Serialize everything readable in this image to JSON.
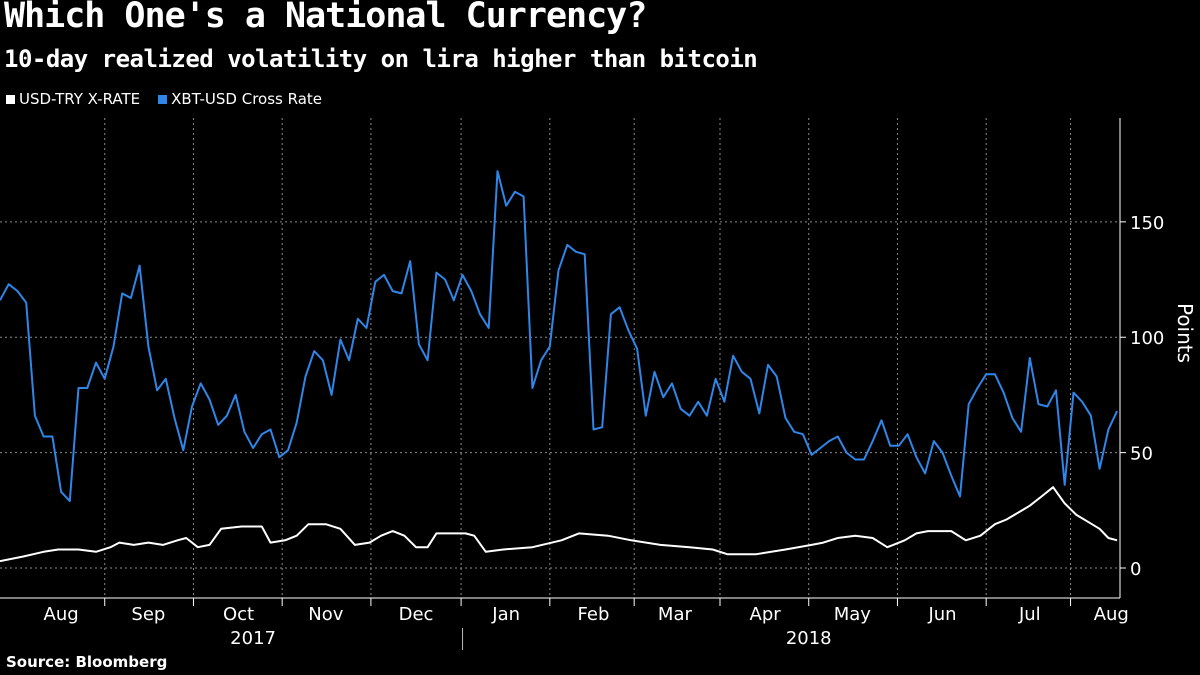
{
  "title": "Which One's a National Currency?",
  "subtitle": "10-day realized volatility on lira higher than bitcoin",
  "source": "Source: Bloomberg",
  "colors": {
    "background": "#000000",
    "lira": "#ffffff",
    "bitcoin": "#2f86e8",
    "grid": "#8a8a8a"
  },
  "chart_data": {
    "type": "line",
    "ylabel": "Points",
    "ylim": [
      -13,
      195
    ],
    "yticks": [
      0,
      50,
      100,
      150
    ],
    "xlim": [
      "2017-07-26",
      "2018-08-15"
    ],
    "x_tick_labels": [
      "Aug",
      "Sep",
      "Oct",
      "Nov",
      "Dec",
      "Jan",
      "Feb",
      "Mar",
      "Apr",
      "May",
      "Jun",
      "Jul",
      "Aug"
    ],
    "x_tick_dates": [
      "2017-08-16",
      "2017-09-15",
      "2017-10-16",
      "2017-11-15",
      "2017-12-16",
      "2018-01-16",
      "2018-02-15",
      "2018-03-15",
      "2018-04-15",
      "2018-05-15",
      "2018-06-15",
      "2018-07-15",
      "2018-08-12"
    ],
    "year_labels": [
      "2017",
      "2018"
    ],
    "year_label_dates": [
      "2017-10-21",
      "2018-04-30"
    ],
    "grid": true,
    "legend": "top-left",
    "series": [
      {
        "name": "USD-TRY X-RATE",
        "color": "#ffffff",
        "points": [
          [
            "2017-07-26",
            3
          ],
          [
            "2017-08-03",
            5
          ],
          [
            "2017-08-10",
            7
          ],
          [
            "2017-08-15",
            8
          ],
          [
            "2017-08-22",
            8
          ],
          [
            "2017-08-28",
            7
          ],
          [
            "2017-09-02",
            9
          ],
          [
            "2017-09-05",
            11
          ],
          [
            "2017-09-10",
            10
          ],
          [
            "2017-09-15",
            11
          ],
          [
            "2017-09-20",
            10
          ],
          [
            "2017-09-25",
            12
          ],
          [
            "2017-09-28",
            13
          ],
          [
            "2017-10-02",
            9
          ],
          [
            "2017-10-06",
            10
          ],
          [
            "2017-10-10",
            17
          ],
          [
            "2017-10-17",
            18
          ],
          [
            "2017-10-24",
            18
          ],
          [
            "2017-10-27",
            11
          ],
          [
            "2017-11-01",
            12
          ],
          [
            "2017-11-05",
            14
          ],
          [
            "2017-11-09",
            19
          ],
          [
            "2017-11-15",
            19
          ],
          [
            "2017-11-20",
            17
          ],
          [
            "2017-11-25",
            10
          ],
          [
            "2017-11-30",
            11
          ],
          [
            "2017-12-04",
            14
          ],
          [
            "2017-12-08",
            16
          ],
          [
            "2017-12-12",
            14
          ],
          [
            "2017-12-16",
            9
          ],
          [
            "2017-12-20",
            9
          ],
          [
            "2017-12-23",
            15
          ],
          [
            "2017-12-28",
            15
          ],
          [
            "2018-01-02",
            15
          ],
          [
            "2018-01-05",
            14
          ],
          [
            "2018-01-09",
            7
          ],
          [
            "2018-01-15",
            8
          ],
          [
            "2018-01-25",
            9
          ],
          [
            "2018-02-04",
            12
          ],
          [
            "2018-02-10",
            15
          ],
          [
            "2018-02-20",
            14
          ],
          [
            "2018-02-28",
            12
          ],
          [
            "2018-03-10",
            10
          ],
          [
            "2018-03-20",
            9
          ],
          [
            "2018-03-28",
            8
          ],
          [
            "2018-04-02",
            6
          ],
          [
            "2018-04-12",
            6
          ],
          [
            "2018-04-22",
            8
          ],
          [
            "2018-05-01",
            10
          ],
          [
            "2018-05-05",
            11
          ],
          [
            "2018-05-10",
            13
          ],
          [
            "2018-05-16",
            14
          ],
          [
            "2018-05-22",
            13
          ],
          [
            "2018-05-27",
            9
          ],
          [
            "2018-06-02",
            12
          ],
          [
            "2018-06-06",
            15
          ],
          [
            "2018-06-10",
            16
          ],
          [
            "2018-06-18",
            16
          ],
          [
            "2018-06-23",
            12
          ],
          [
            "2018-06-28",
            14
          ],
          [
            "2018-07-03",
            19
          ],
          [
            "2018-07-07",
            21
          ],
          [
            "2018-07-11",
            24
          ],
          [
            "2018-07-15",
            27
          ],
          [
            "2018-07-19",
            31
          ],
          [
            "2018-07-23",
            35
          ],
          [
            "2018-07-27",
            28
          ],
          [
            "2018-07-31",
            23
          ],
          [
            "2018-08-04",
            20
          ],
          [
            "2018-08-08",
            17
          ],
          [
            "2018-08-11",
            13
          ],
          [
            "2018-08-14",
            12
          ]
        ]
      },
      {
        "name": "XBT-USD Cross Rate",
        "color": "#2f86e8",
        "points": [
          [
            "2017-07-26",
            116
          ],
          [
            "2017-07-29",
            123
          ],
          [
            "2017-08-01",
            120
          ],
          [
            "2017-08-04",
            115
          ],
          [
            "2017-08-07",
            66
          ],
          [
            "2017-08-10",
            57
          ],
          [
            "2017-08-13",
            57
          ],
          [
            "2017-08-16",
            33
          ],
          [
            "2017-08-19",
            29
          ],
          [
            "2017-08-22",
            78
          ],
          [
            "2017-08-25",
            78
          ],
          [
            "2017-08-28",
            89
          ],
          [
            "2017-08-31",
            82
          ],
          [
            "2017-09-03",
            96
          ],
          [
            "2017-09-06",
            119
          ],
          [
            "2017-09-09",
            117
          ],
          [
            "2017-09-12",
            131
          ],
          [
            "2017-09-15",
            96
          ],
          [
            "2017-09-18",
            77
          ],
          [
            "2017-09-21",
            82
          ],
          [
            "2017-09-24",
            65
          ],
          [
            "2017-09-27",
            51
          ],
          [
            "2017-09-30",
            70
          ],
          [
            "2017-10-03",
            80
          ],
          [
            "2017-10-06",
            73
          ],
          [
            "2017-10-09",
            62
          ],
          [
            "2017-10-12",
            66
          ],
          [
            "2017-10-15",
            75
          ],
          [
            "2017-10-18",
            59
          ],
          [
            "2017-10-21",
            52
          ],
          [
            "2017-10-24",
            58
          ],
          [
            "2017-10-27",
            60
          ],
          [
            "2017-10-30",
            48
          ],
          [
            "2017-11-02",
            51
          ],
          [
            "2017-11-05",
            63
          ],
          [
            "2017-11-08",
            83
          ],
          [
            "2017-11-11",
            94
          ],
          [
            "2017-11-14",
            90
          ],
          [
            "2017-11-17",
            75
          ],
          [
            "2017-11-20",
            99
          ],
          [
            "2017-11-23",
            90
          ],
          [
            "2017-11-26",
            108
          ],
          [
            "2017-11-29",
            104
          ],
          [
            "2017-12-02",
            124
          ],
          [
            "2017-12-05",
            127
          ],
          [
            "2017-12-08",
            120
          ],
          [
            "2017-12-11",
            119
          ],
          [
            "2017-12-14",
            133
          ],
          [
            "2017-12-17",
            97
          ],
          [
            "2017-12-20",
            90
          ],
          [
            "2017-12-23",
            128
          ],
          [
            "2017-12-26",
            125
          ],
          [
            "2017-12-29",
            116
          ],
          [
            "2018-01-01",
            127
          ],
          [
            "2018-01-04",
            120
          ],
          [
            "2018-01-07",
            110
          ],
          [
            "2018-01-10",
            104
          ],
          [
            "2018-01-13",
            172
          ],
          [
            "2018-01-16",
            157
          ],
          [
            "2018-01-19",
            163
          ],
          [
            "2018-01-22",
            161
          ],
          [
            "2018-01-25",
            78
          ],
          [
            "2018-01-28",
            90
          ],
          [
            "2018-01-31",
            96
          ],
          [
            "2018-02-03",
            129
          ],
          [
            "2018-02-06",
            140
          ],
          [
            "2018-02-09",
            137
          ],
          [
            "2018-02-12",
            136
          ],
          [
            "2018-02-15",
            60
          ],
          [
            "2018-02-18",
            61
          ],
          [
            "2018-02-21",
            110
          ],
          [
            "2018-02-24",
            113
          ],
          [
            "2018-02-27",
            103
          ],
          [
            "2018-03-02",
            95
          ],
          [
            "2018-03-05",
            66
          ],
          [
            "2018-03-08",
            85
          ],
          [
            "2018-03-11",
            74
          ],
          [
            "2018-03-14",
            80
          ],
          [
            "2018-03-17",
            69
          ],
          [
            "2018-03-20",
            66
          ],
          [
            "2018-03-23",
            72
          ],
          [
            "2018-03-26",
            66
          ],
          [
            "2018-03-29",
            82
          ],
          [
            "2018-04-01",
            72
          ],
          [
            "2018-04-04",
            92
          ],
          [
            "2018-04-07",
            85
          ],
          [
            "2018-04-10",
            82
          ],
          [
            "2018-04-13",
            67
          ],
          [
            "2018-04-16",
            88
          ],
          [
            "2018-04-19",
            83
          ],
          [
            "2018-04-22",
            65
          ],
          [
            "2018-04-25",
            59
          ],
          [
            "2018-04-28",
            58
          ],
          [
            "2018-05-01",
            49
          ],
          [
            "2018-05-04",
            52
          ],
          [
            "2018-05-07",
            55
          ],
          [
            "2018-05-10",
            57
          ],
          [
            "2018-05-13",
            50
          ],
          [
            "2018-05-16",
            47
          ],
          [
            "2018-05-19",
            47
          ],
          [
            "2018-05-22",
            55
          ],
          [
            "2018-05-25",
            64
          ],
          [
            "2018-05-28",
            53
          ],
          [
            "2018-05-31",
            53
          ],
          [
            "2018-06-03",
            58
          ],
          [
            "2018-06-06",
            48
          ],
          [
            "2018-06-09",
            41
          ],
          [
            "2018-06-12",
            55
          ],
          [
            "2018-06-15",
            50
          ],
          [
            "2018-06-18",
            40
          ],
          [
            "2018-06-21",
            31
          ],
          [
            "2018-06-24",
            71
          ],
          [
            "2018-06-27",
            78
          ],
          [
            "2018-06-30",
            84
          ],
          [
            "2018-07-03",
            84
          ],
          [
            "2018-07-06",
            76
          ],
          [
            "2018-07-09",
            65
          ],
          [
            "2018-07-12",
            59
          ],
          [
            "2018-07-15",
            91
          ],
          [
            "2018-07-18",
            71
          ],
          [
            "2018-07-21",
            70
          ],
          [
            "2018-07-24",
            77
          ],
          [
            "2018-07-27",
            36
          ],
          [
            "2018-07-30",
            76
          ],
          [
            "2018-08-02",
            72
          ],
          [
            "2018-08-05",
            66
          ],
          [
            "2018-08-08",
            43
          ],
          [
            "2018-08-11",
            60
          ],
          [
            "2018-08-14",
            68
          ]
        ]
      }
    ]
  }
}
